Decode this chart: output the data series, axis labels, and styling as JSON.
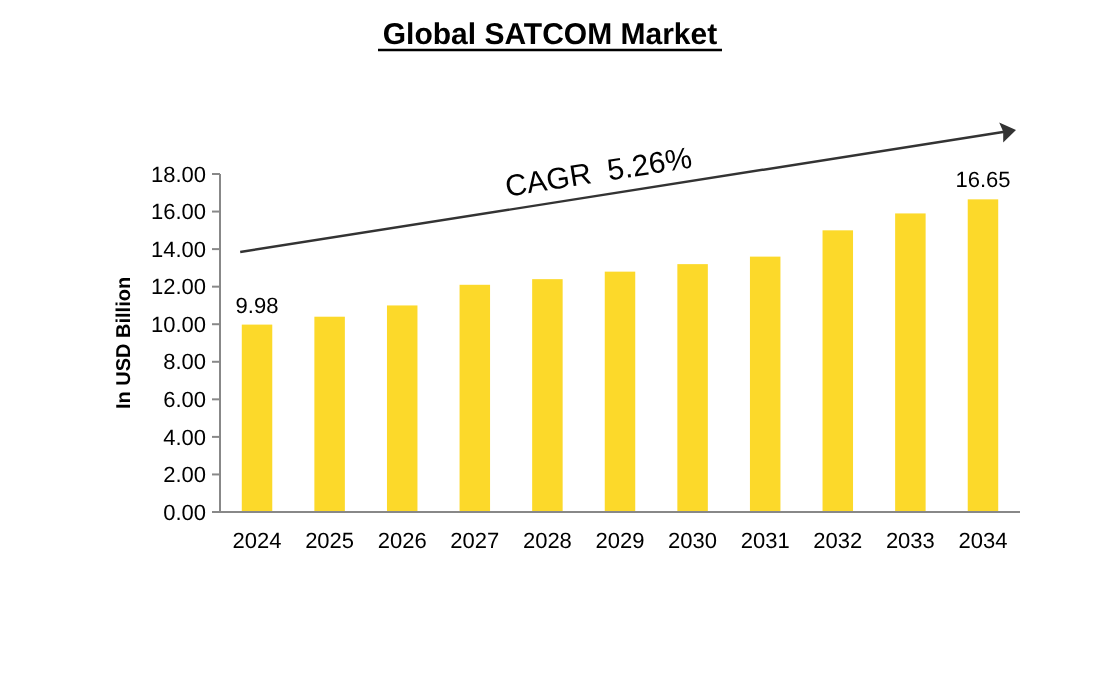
{
  "chart_data": {
    "type": "bar",
    "title": "Global SATCOM Market",
    "ylabel": "In USD Billion",
    "categories": [
      "2024",
      "2025",
      "2026",
      "2027",
      "2028",
      "2029",
      "2030",
      "2031",
      "2032",
      "2033",
      "2034"
    ],
    "values": [
      9.98,
      10.4,
      11.0,
      12.1,
      12.4,
      12.8,
      13.2,
      13.6,
      15.0,
      15.9,
      16.65
    ],
    "value_labels": [
      "9.98",
      null,
      null,
      null,
      null,
      null,
      null,
      null,
      null,
      null,
      "16.65"
    ],
    "color": "#fcd92a",
    "ylim": [
      0,
      18
    ],
    "yticks": [
      {
        "value": 0,
        "label": "0.00"
      },
      {
        "value": 2,
        "label": "2.00"
      },
      {
        "value": 4,
        "label": "4.00"
      },
      {
        "value": 6,
        "label": "6.00"
      },
      {
        "value": 8,
        "label": "8.00"
      },
      {
        "value": 10,
        "label": "10.00"
      },
      {
        "value": 12,
        "label": "12.00"
      },
      {
        "value": 14,
        "label": "14.00"
      },
      {
        "value": 16,
        "label": "16.00"
      },
      {
        "value": 18,
        "label": "18.00"
      }
    ],
    "annotations": [
      "CAGR  5.26%"
    ]
  }
}
